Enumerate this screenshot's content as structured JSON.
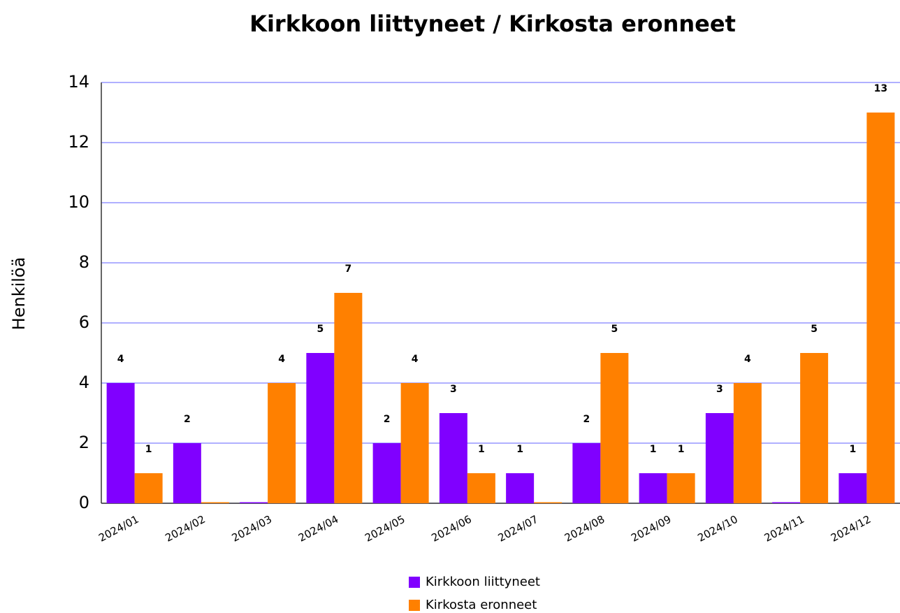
{
  "chart_data": {
    "type": "bar",
    "title": "Kirkkoon liittyneet  / Kirkosta eronneet",
    "y_label": "Henkilöä",
    "categories": [
      "2024/01",
      "2024/02",
      "2024/03",
      "2024/04",
      "2024/05",
      "2024/06",
      "2024/07",
      "2024/08",
      "2024/09",
      "2024/10",
      "2024/11",
      "2024/12"
    ],
    "series": [
      {
        "name": "Kirkkoon liittyneet",
        "color": "#8000ff",
        "values": [
          4,
          2,
          0,
          5,
          2,
          3,
          1,
          2,
          1,
          3,
          0,
          1
        ]
      },
      {
        "name": "Kirkosta eronneet",
        "color": "#ff8000",
        "values": [
          1,
          0,
          4,
          7,
          4,
          1,
          0,
          5,
          1,
          4,
          5,
          13
        ]
      }
    ],
    "ylim": [
      0,
      14
    ],
    "yticks": [
      0,
      2,
      4,
      6,
      8,
      10,
      12,
      14
    ],
    "grid": true
  }
}
